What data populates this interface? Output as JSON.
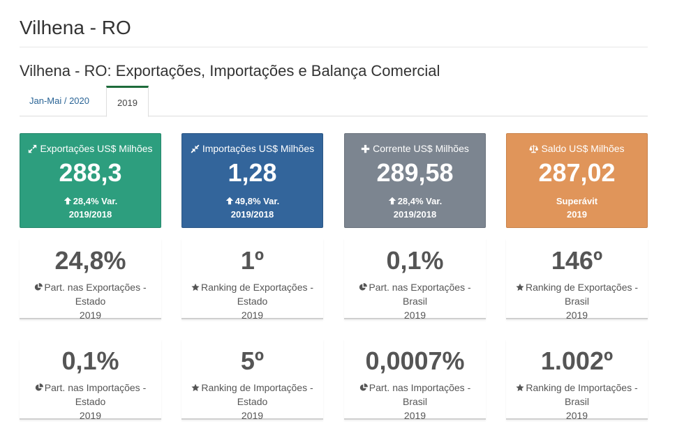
{
  "header": {
    "title": "Vilhena - RO"
  },
  "section": {
    "title": "Vilhena - RO: Exportações, Importações e Balança Comercial"
  },
  "tabs": [
    {
      "label": "Jan-Mai / 2020",
      "active": false
    },
    {
      "label": "2019",
      "active": true
    }
  ],
  "colors": {
    "exports": "#2d9e7e",
    "imports": "#33659b",
    "current": "#7c8590",
    "balance": "#e0955a",
    "tab_accent": "#1d6b3a"
  },
  "kpis": {
    "exports": {
      "icon": "expand-arrows-icon",
      "label": "Exportações US$ Milhões",
      "value": "288,3",
      "var": "28,4% Var.",
      "period": "2019/2018"
    },
    "imports": {
      "icon": "compress-arrows-icon",
      "label": "Importações US$ Milhões",
      "value": "1,28",
      "var": "49,8% Var.",
      "period": "2019/2018"
    },
    "current": {
      "icon": "plus-icon",
      "label": "Corrente US$ Milhões",
      "value": "289,58",
      "var": "28,4% Var.",
      "period": "2019/2018"
    },
    "balance": {
      "icon": "balance-scale-icon",
      "label": "Saldo US$ Milhões",
      "value": "287,02",
      "status": "Superávit",
      "period": "2019"
    }
  },
  "stats_exports": [
    {
      "icon": "pie-chart-icon",
      "value": "24,8%",
      "label": "Part. nas Exportações - Estado",
      "year": "2019"
    },
    {
      "icon": "star-icon",
      "value": "1º",
      "label": "Ranking de Exportações - Estado",
      "year": "2019"
    },
    {
      "icon": "pie-chart-icon",
      "value": "0,1%",
      "label": "Part. nas Exportações - Brasil",
      "year": "2019"
    },
    {
      "icon": "star-icon",
      "value": "146º",
      "label": "Ranking de Exportações - Brasil",
      "year": "2019"
    }
  ],
  "stats_imports": [
    {
      "icon": "pie-chart-icon",
      "value": "0,1%",
      "label": "Part. nas Importações - Estado",
      "year": "2019"
    },
    {
      "icon": "star-icon",
      "value": "5º",
      "label": "Ranking de Importações - Estado",
      "year": "2019"
    },
    {
      "icon": "pie-chart-icon",
      "value": "0,0007%",
      "label": "Part. nas Importações - Brasil",
      "year": "2019"
    },
    {
      "icon": "star-icon",
      "value": "1.002º",
      "label": "Ranking de Importações - Brasil",
      "year": "2019"
    }
  ]
}
